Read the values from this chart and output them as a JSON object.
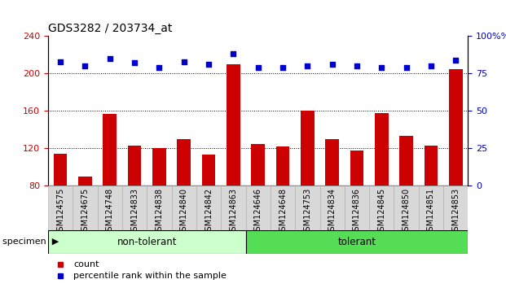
{
  "title": "GDS3282 / 203734_at",
  "categories": [
    "GSM124575",
    "GSM124675",
    "GSM124748",
    "GSM124833",
    "GSM124838",
    "GSM124840",
    "GSM124842",
    "GSM124863",
    "GSM124646",
    "GSM124648",
    "GSM124753",
    "GSM124834",
    "GSM124836",
    "GSM124845",
    "GSM124850",
    "GSM124851",
    "GSM124853"
  ],
  "counts": [
    114,
    90,
    157,
    123,
    120,
    130,
    113,
    210,
    125,
    122,
    160,
    130,
    118,
    158,
    133,
    123,
    205
  ],
  "percentile_ranks": [
    83,
    80,
    85,
    82,
    79,
    83,
    81,
    88,
    79,
    79,
    80,
    81,
    80,
    79,
    79,
    80,
    84
  ],
  "group_labels": [
    "non-tolerant",
    "tolerant"
  ],
  "group_split": 8,
  "bar_color": "#cc0000",
  "dot_color": "#0000cc",
  "ylim_left": [
    80,
    240
  ],
  "ylim_right": [
    0,
    100
  ],
  "yticks_left": [
    80,
    120,
    160,
    200,
    240
  ],
  "yticks_right": [
    0,
    25,
    50,
    75,
    100
  ],
  "grid_values": [
    120,
    160,
    200
  ],
  "group1_color": "#ccffcc",
  "group2_color": "#55dd55",
  "specimen_label": "specimen",
  "legend_count_label": "count",
  "legend_pct_label": "percentile rank within the sample",
  "bar_width": 0.55
}
